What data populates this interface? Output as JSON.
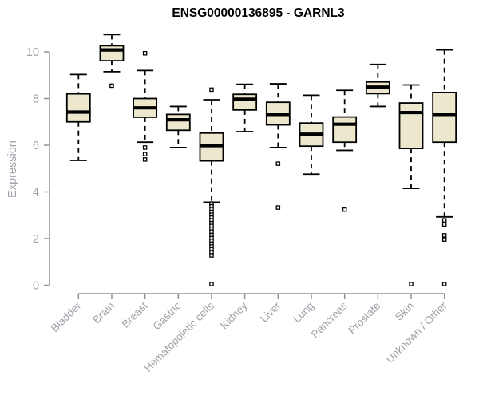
{
  "chart_data": {
    "type": "boxplot",
    "title": "ENSG00000136895 - GARNL3",
    "ylabel": "Expression",
    "xlabel": "",
    "ylim": [
      0,
      10
    ],
    "yticks": [
      0,
      2,
      4,
      6,
      8,
      10
    ],
    "grid": false,
    "legend": "none",
    "colors": {
      "box_fill": "#EDE8CD",
      "box_stroke": "#000000",
      "median": "#000000",
      "whisker": "#000000",
      "outlier_fill": "#ffffff",
      "axis": "#8F9397",
      "tick_label": "#9EA2A8",
      "title": "#000000"
    },
    "categories": [
      "Bladder",
      "Brain",
      "Breast",
      "Gastric",
      "Hematopoietic cells",
      "Kidney",
      "Liver",
      "Lung",
      "Pancreas",
      "Prostate",
      "Skin",
      "Unknown / Other"
    ],
    "series": [
      {
        "category": "Bladder",
        "whisker_low": 5.35,
        "q1": 7.0,
        "median": 7.42,
        "q3": 8.2,
        "whisker_high": 9.03,
        "outliers": []
      },
      {
        "category": "Brain",
        "whisker_low": 9.15,
        "q1": 9.62,
        "median": 10.08,
        "q3": 10.26,
        "whisker_high": 10.74,
        "outliers": [
          8.55
        ]
      },
      {
        "category": "Breast",
        "whisker_low": 6.13,
        "q1": 7.2,
        "median": 7.6,
        "q3": 8.0,
        "whisker_high": 9.2,
        "outliers": [
          9.94,
          5.9,
          5.62,
          5.39
        ]
      },
      {
        "category": "Gastric",
        "whisker_low": 5.9,
        "q1": 6.64,
        "median": 7.09,
        "q3": 7.32,
        "whisker_high": 7.66,
        "outliers": []
      },
      {
        "category": "Hematopoietic cells",
        "whisker_low": 3.56,
        "q1": 5.33,
        "median": 5.98,
        "q3": 6.52,
        "whisker_high": 7.95,
        "outliers": [
          8.38,
          3.5,
          3.38,
          3.26,
          3.14,
          3.02,
          2.9,
          2.78,
          2.66,
          2.54,
          2.42,
          2.3,
          2.15,
          2.02,
          1.9,
          1.78,
          1.66,
          1.54,
          1.42,
          1.28,
          0.05
        ]
      },
      {
        "category": "Kidney",
        "whisker_low": 6.58,
        "q1": 7.51,
        "median": 7.97,
        "q3": 8.18,
        "whisker_high": 8.61,
        "outliers": []
      },
      {
        "category": "Liver",
        "whisker_low": 5.9,
        "q1": 6.87,
        "median": 7.32,
        "q3": 7.84,
        "whisker_high": 8.63,
        "outliers": [
          5.21,
          3.33
        ]
      },
      {
        "category": "Lung",
        "whisker_low": 4.76,
        "q1": 5.96,
        "median": 6.47,
        "q3": 6.95,
        "whisker_high": 8.14,
        "outliers": []
      },
      {
        "category": "Pancreas",
        "whisker_low": 5.78,
        "q1": 6.13,
        "median": 6.9,
        "q3": 7.21,
        "whisker_high": 8.35,
        "outliers": [
          3.24
        ]
      },
      {
        "category": "Prostate",
        "whisker_low": 7.66,
        "q1": 8.21,
        "median": 8.49,
        "q3": 8.71,
        "whisker_high": 9.46,
        "outliers": []
      },
      {
        "category": "Skin",
        "whisker_low": 4.15,
        "q1": 5.86,
        "median": 7.4,
        "q3": 7.81,
        "whisker_high": 8.58,
        "outliers": [
          0.05
        ]
      },
      {
        "category": "Unknown / Other",
        "whisker_low": 2.93,
        "q1": 6.13,
        "median": 7.32,
        "q3": 8.26,
        "whisker_high": 10.08,
        "outliers": [
          2.78,
          2.6,
          2.14,
          1.96,
          0.05
        ]
      }
    ]
  }
}
